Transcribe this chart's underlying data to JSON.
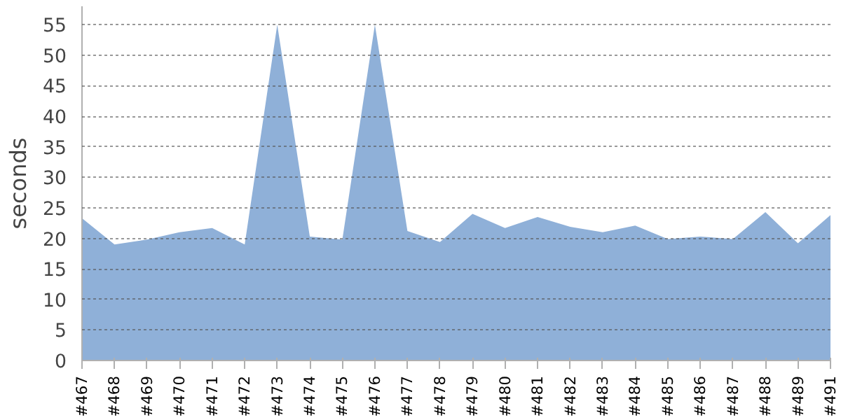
{
  "chart_data": {
    "type": "area",
    "ylabel": "seconds",
    "categories": [
      "#467",
      "#468",
      "#469",
      "#470",
      "#471",
      "#472",
      "#473",
      "#474",
      "#475",
      "#476",
      "#477",
      "#478",
      "#479",
      "#480",
      "#481",
      "#482",
      "#483",
      "#484",
      "#485",
      "#486",
      "#487",
      "#488",
      "#489",
      "#491"
    ],
    "series": [
      {
        "color": "#8fb0d8",
        "values": [
          23.3,
          19,
          19.8,
          21,
          21.7,
          19,
          55,
          20.3,
          19.8,
          55,
          21.2,
          19.4,
          24,
          21.7,
          23.5,
          21.9,
          21,
          22.1,
          19.9,
          20.3,
          19.9,
          24.3,
          19.2,
          23.8
        ]
      }
    ],
    "ylim": [
      0,
      58
    ],
    "yticks": [
      0,
      5,
      10,
      15,
      20,
      25,
      30,
      35,
      40,
      45,
      50,
      55
    ],
    "grid": "y"
  }
}
